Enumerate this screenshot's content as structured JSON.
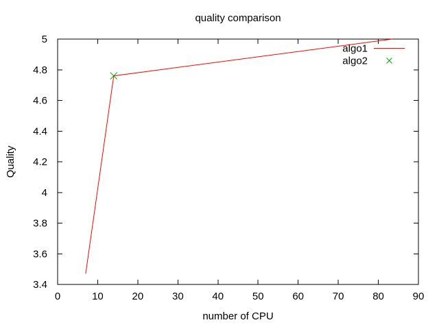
{
  "window": {
    "background": "#ffffff"
  },
  "chart_data": {
    "type": "line",
    "title": "quality comparison",
    "xlabel": "number of CPU",
    "ylabel": "Quality",
    "xlim": [
      0,
      90
    ],
    "ylim": [
      3.4,
      5.0
    ],
    "xtick_values": [
      0,
      10,
      20,
      30,
      40,
      50,
      60,
      70,
      80,
      90
    ],
    "xtick_labels": [
      "0",
      "10",
      "20",
      "30",
      "40",
      "50",
      "60",
      "70",
      "80",
      "90"
    ],
    "ytick_values": [
      3.4,
      3.6,
      3.8,
      4.0,
      4.2,
      4.4,
      4.6,
      4.8,
      5.0
    ],
    "ytick_labels": [
      "3.4",
      "3.6",
      "3.8",
      "4",
      "4.2",
      "4.4",
      "4.6",
      "4.8",
      "5"
    ],
    "grid": false,
    "legend_position": "top-right-inside",
    "axis_color": "#000000",
    "text_color": "#000000",
    "series": [
      {
        "name": "algo1",
        "style": "line",
        "color": "#ff0000",
        "points": [
          [
            7,
            3.47
          ],
          [
            14,
            4.76
          ],
          [
            83.5,
            5.0
          ]
        ]
      },
      {
        "name": "algo2",
        "style": "points",
        "marker": "x",
        "color": "#00a000",
        "points": [
          [
            14,
            4.76
          ]
        ]
      }
    ]
  }
}
